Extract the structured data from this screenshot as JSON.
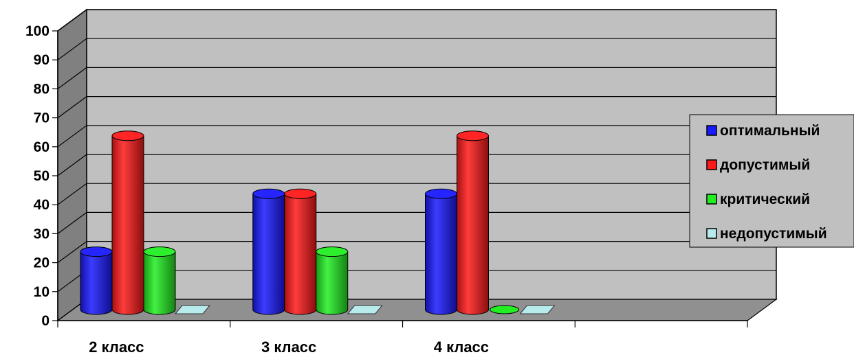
{
  "chart_data": {
    "type": "bar",
    "style": "3d-cylinder",
    "categories": [
      "2 класс",
      "3 класс",
      "4 класс",
      ""
    ],
    "series": [
      {
        "name": "оптимальный",
        "color": "#1a1aff",
        "values": [
          20,
          40,
          40,
          null
        ]
      },
      {
        "name": "допустимый",
        "color": "#ff1a1a",
        "values": [
          60,
          40,
          60,
          null
        ]
      },
      {
        "name": "критический",
        "color": "#22ee22",
        "values": [
          20,
          20,
          0,
          null
        ]
      },
      {
        "name": "недопустимый",
        "color": "#b8ecec",
        "values": [
          0,
          0,
          0,
          null
        ]
      }
    ],
    "yticks": [
      "0",
      "10",
      "20",
      "30",
      "40",
      "50",
      "60",
      "70",
      "80",
      "90",
      "100"
    ],
    "ylim": [
      0,
      100
    ],
    "grid": true,
    "legend": "right",
    "colors": {
      "wall": "#c0c0c0",
      "side_wall": "#808080",
      "floor": "#909090"
    }
  }
}
